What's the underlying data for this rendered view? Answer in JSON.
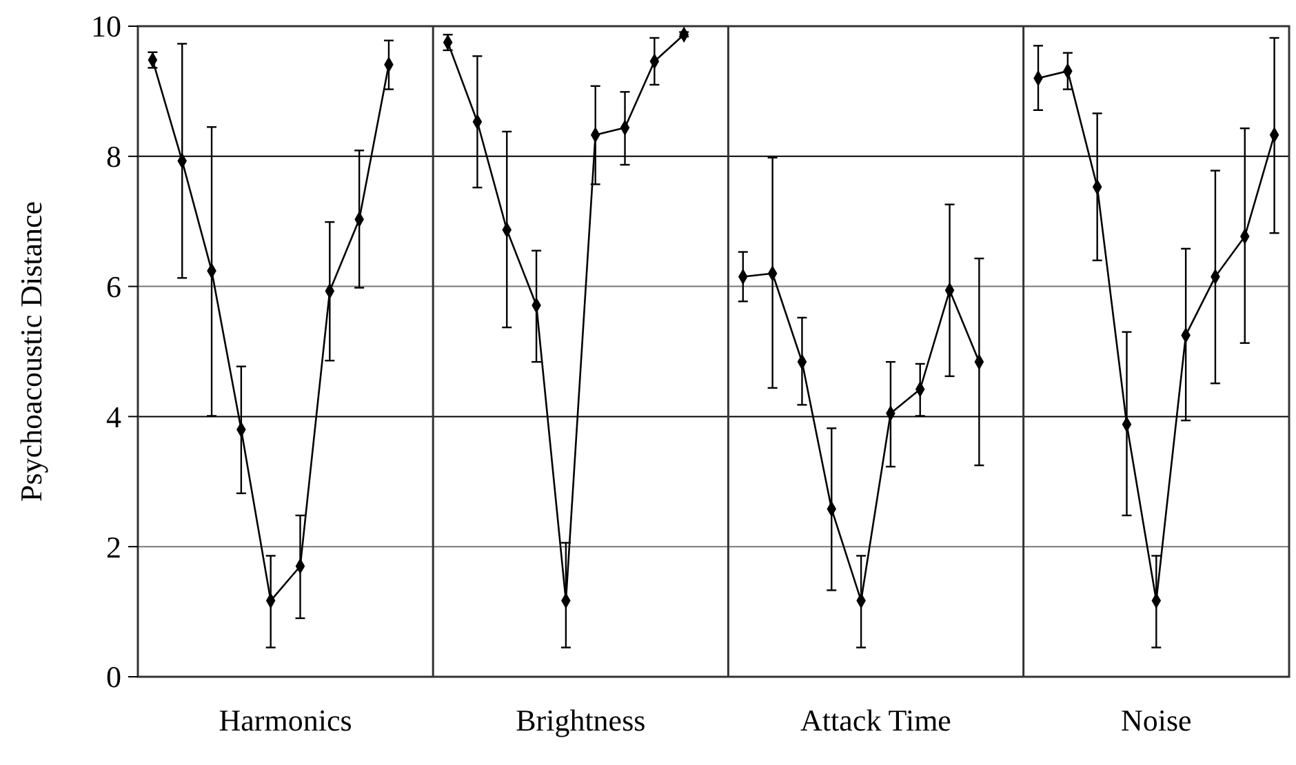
{
  "chart_data": {
    "type": "line",
    "ylabel": "Psychoacoustic Distance",
    "annotations": [
      "Harmonics",
      "Brightness",
      "Attack Time",
      "Noise"
    ],
    "categories": [
      null,
      null,
      null,
      null,
      null,
      null,
      null,
      null,
      null,
      null,
      null,
      null,
      null,
      null,
      null,
      null,
      null,
      null,
      null,
      null,
      null,
      null,
      null,
      null,
      null,
      null,
      null,
      null,
      null,
      null,
      null,
      null,
      null,
      null,
      null,
      null,
      null,
      null,
      null
    ],
    "ylim": [
      0,
      10
    ],
    "yticks": [
      0,
      2,
      4,
      6,
      8,
      10
    ],
    "grid": "y",
    "tick_labels": "y",
    "marker": "diamond",
    "line_style": "solid",
    "series": [
      {
        "color": "#000000",
        "values": [
          9.48,
          7.93,
          6.24,
          3.8,
          1.17,
          1.7,
          5.93,
          7.03,
          9.41,
          null,
          null,
          null,
          null,
          null,
          null,
          null,
          null,
          null,
          null,
          null,
          null,
          null,
          null,
          null,
          null,
          null,
          null,
          null,
          null,
          null,
          null,
          null,
          null,
          null,
          null,
          null,
          null,
          null,
          null
        ],
        "errors": [
          [
            9.36,
            9.6
          ],
          [
            6.13,
            9.73
          ],
          [
            4.01,
            8.45
          ],
          [
            2.82,
            4.77
          ],
          [
            0.45,
            1.86
          ],
          [
            0.9,
            2.48
          ],
          [
            4.86,
            6.99
          ],
          [
            5.98,
            8.09
          ],
          [
            9.03,
            9.78
          ],
          null,
          null,
          null,
          null,
          null,
          null,
          null,
          null,
          null,
          null,
          null,
          null,
          null,
          null,
          null,
          null,
          null,
          null,
          null,
          null,
          null,
          null,
          null,
          null,
          null,
          null,
          null,
          null,
          null,
          null
        ]
      },
      {
        "color": "#000000",
        "values": [
          null,
          null,
          null,
          null,
          null,
          null,
          null,
          null,
          null,
          null,
          9.75,
          8.53,
          6.87,
          5.71,
          1.17,
          8.33,
          8.44,
          9.46,
          9.87,
          null,
          null,
          null,
          null,
          null,
          null,
          null,
          null,
          null,
          null,
          null,
          null,
          null,
          null,
          null,
          null,
          null,
          null,
          null,
          null
        ],
        "errors": [
          null,
          null,
          null,
          null,
          null,
          null,
          null,
          null,
          null,
          null,
          [
            9.63,
            9.87
          ],
          [
            7.52,
            9.54
          ],
          [
            5.37,
            8.38
          ],
          [
            4.84,
            6.55
          ],
          [
            0.45,
            2.06
          ],
          [
            7.57,
            9.08
          ],
          [
            7.87,
            8.99
          ],
          [
            9.1,
            9.82
          ],
          [
            9.84,
            9.91
          ],
          null,
          null,
          null,
          null,
          null,
          null,
          null,
          null,
          null,
          null,
          null,
          null,
          null,
          null,
          null,
          null,
          null,
          null,
          null,
          null
        ]
      },
      {
        "color": "#000000",
        "values": [
          null,
          null,
          null,
          null,
          null,
          null,
          null,
          null,
          null,
          null,
          null,
          null,
          null,
          null,
          null,
          null,
          null,
          null,
          null,
          null,
          6.15,
          6.2,
          4.84,
          2.58,
          1.17,
          4.05,
          4.42,
          5.94,
          4.84,
          null,
          null,
          null,
          null,
          null,
          null,
          null,
          null,
          null,
          null
        ],
        "errors": [
          null,
          null,
          null,
          null,
          null,
          null,
          null,
          null,
          null,
          null,
          null,
          null,
          null,
          null,
          null,
          null,
          null,
          null,
          null,
          null,
          [
            5.77,
            6.53
          ],
          [
            4.44,
            7.98
          ],
          [
            4.18,
            5.52
          ],
          [
            1.33,
            3.82
          ],
          [
            0.45,
            1.86
          ],
          [
            3.23,
            4.84
          ],
          [
            4.01,
            4.81
          ],
          [
            4.62,
            7.26
          ],
          [
            3.25,
            6.43
          ],
          null,
          null,
          null,
          null,
          null,
          null,
          null,
          null,
          null,
          null
        ]
      },
      {
        "color": "#000000",
        "values": [
          null,
          null,
          null,
          null,
          null,
          null,
          null,
          null,
          null,
          null,
          null,
          null,
          null,
          null,
          null,
          null,
          null,
          null,
          null,
          null,
          null,
          null,
          null,
          null,
          null,
          null,
          null,
          null,
          null,
          null,
          9.2,
          9.31,
          7.53,
          3.88,
          1.17,
          5.25,
          6.15,
          6.77,
          8.33
        ],
        "errors": [
          null,
          null,
          null,
          null,
          null,
          null,
          null,
          null,
          null,
          null,
          null,
          null,
          null,
          null,
          null,
          null,
          null,
          null,
          null,
          null,
          null,
          null,
          null,
          null,
          null,
          null,
          null,
          null,
          null,
          null,
          [
            8.71,
            9.7
          ],
          [
            9.03,
            9.59
          ],
          [
            6.4,
            8.66
          ],
          [
            2.48,
            5.3
          ],
          [
            0.45,
            1.86
          ],
          [
            3.94,
            6.58
          ],
          [
            4.51,
            7.78
          ],
          [
            5.13,
            8.43
          ],
          [
            6.82,
            9.82
          ]
        ]
      }
    ]
  }
}
